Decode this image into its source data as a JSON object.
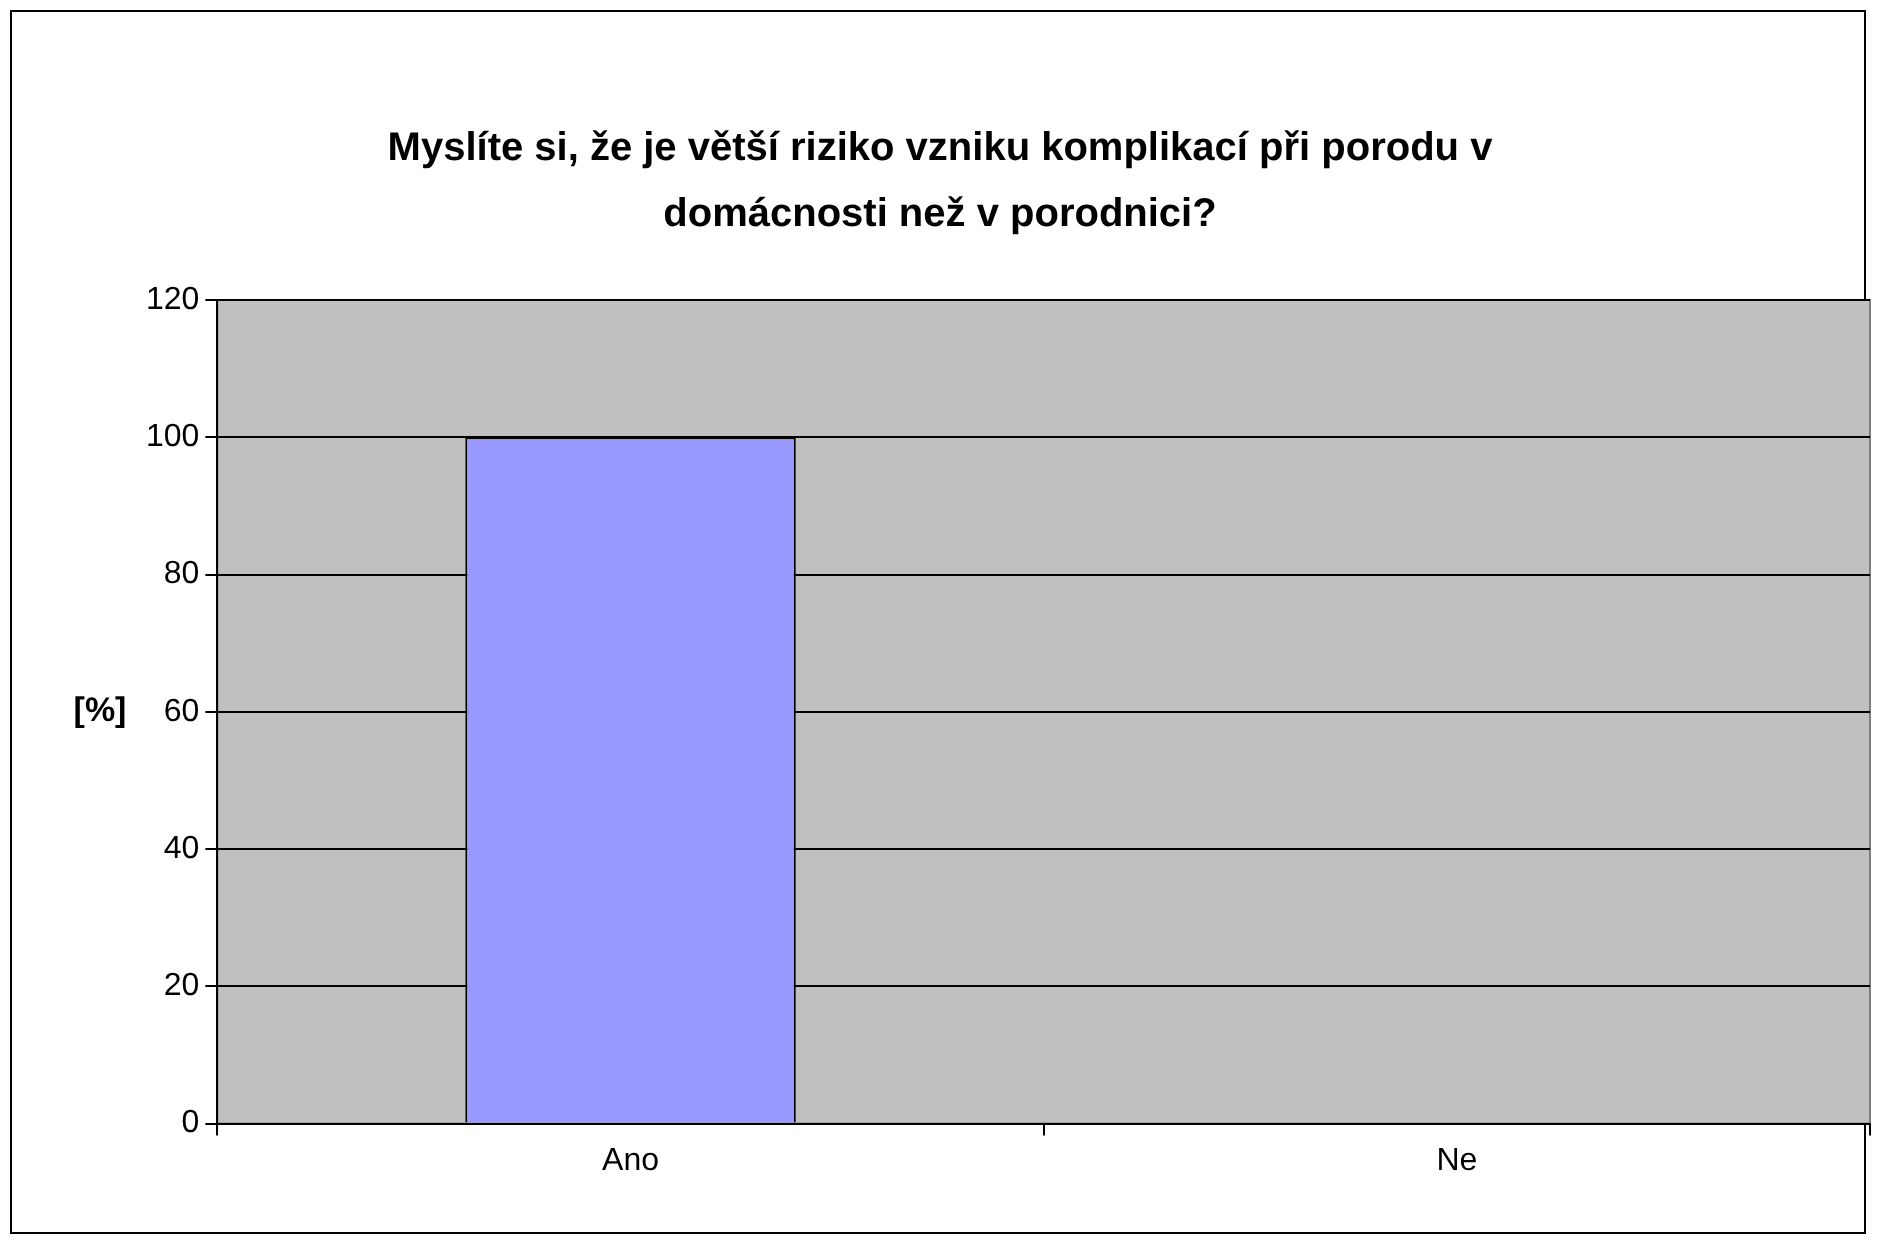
{
  "chart_data": {
    "type": "bar",
    "title": "Myslíte si, že je větší riziko vzniku komplikací při porodu v domácnosti než v porodnici?",
    "ylabel": "[%]",
    "categories": [
      "Ano",
      "Ne"
    ],
    "values": [
      100,
      0
    ],
    "color": "#9999ff",
    "ylim": [
      0,
      120
    ],
    "yticks": [
      0,
      20,
      40,
      60,
      80,
      100,
      120
    ],
    "grid": "y",
    "legend": false
  }
}
